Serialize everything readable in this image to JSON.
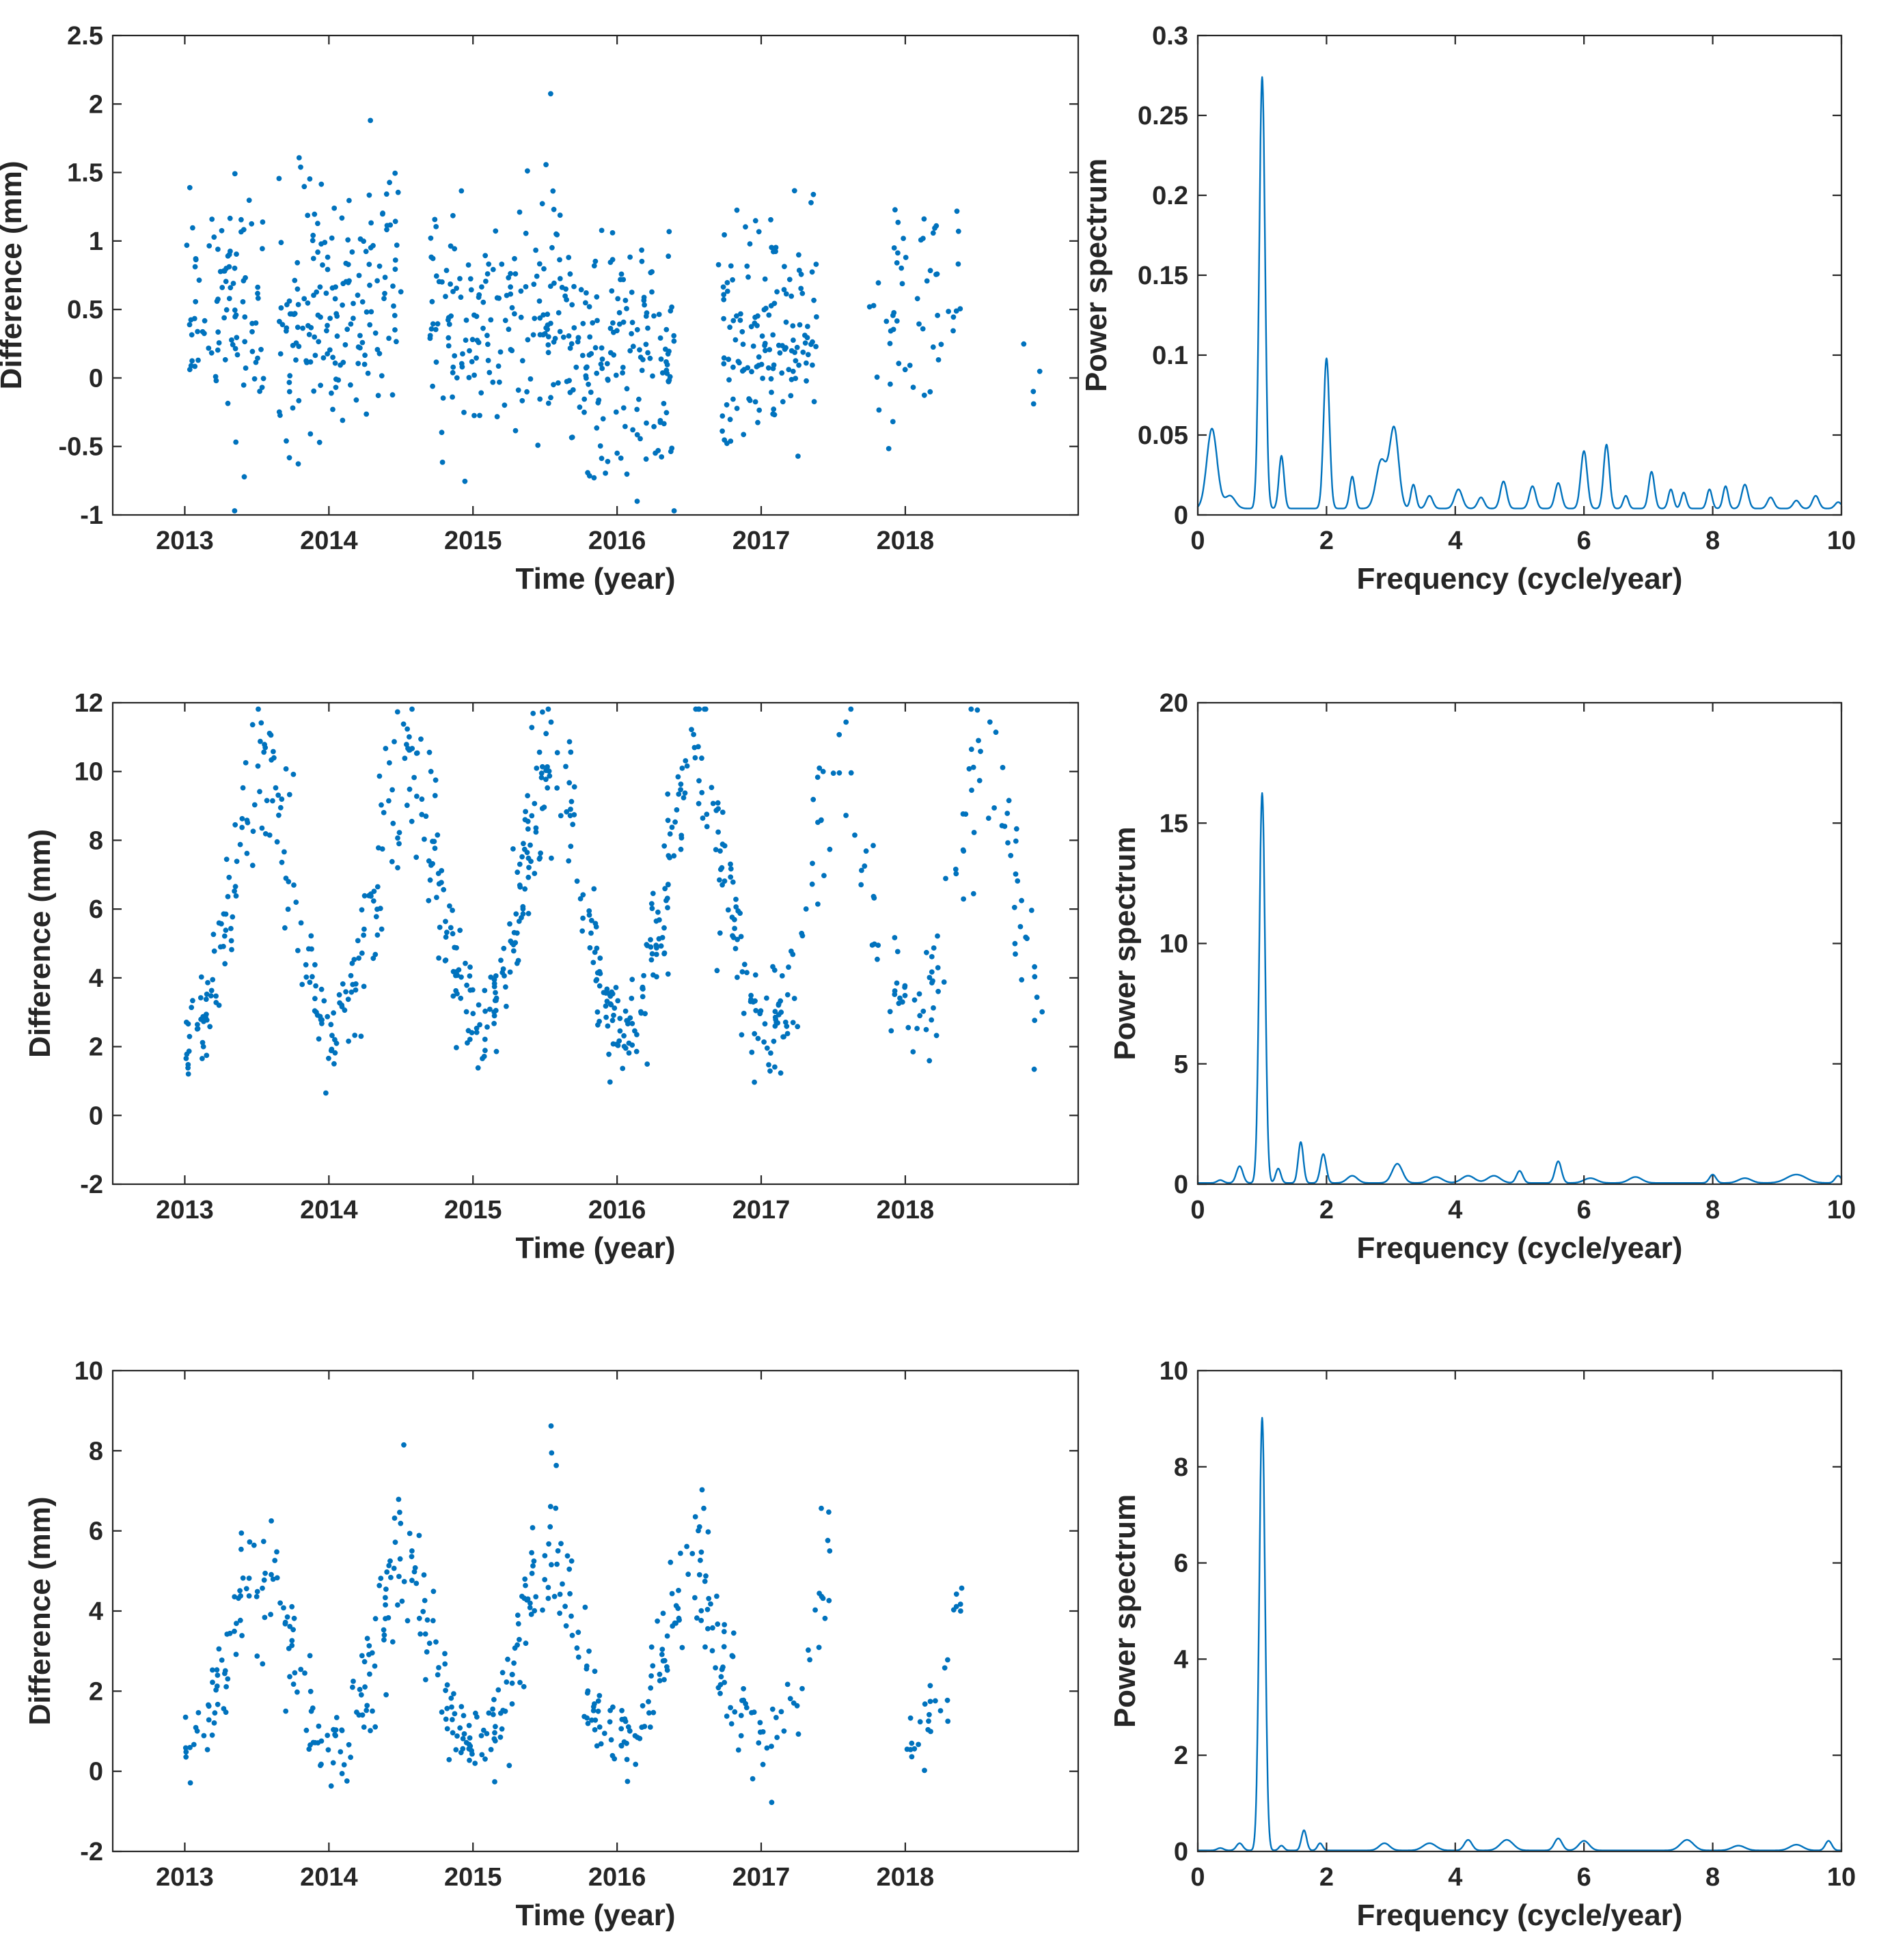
{
  "colors": {
    "series": "#0072BD",
    "axis": "#262626",
    "background": "#ffffff"
  },
  "chart_data": [
    {
      "id": "p1",
      "type": "scatter",
      "xlabel": "Time (year)",
      "ylabel": "Difference (mm)",
      "xlim": [
        2012.5,
        2019.2
      ],
      "ylim": [
        -1,
        2.5
      ],
      "xticks": [
        2013,
        2014,
        2015,
        2016,
        2017,
        2018
      ],
      "yticks": [
        -1,
        -0.5,
        0,
        0.5,
        1,
        1.5,
        2,
        2.5
      ],
      "ytick_labels": [
        "-1",
        "-0.5",
        "0",
        "0.5",
        "1",
        "1.5",
        "2",
        "2.5"
      ],
      "generator": {
        "seed": 11,
        "clusters": [
          {
            "start": 2013.0,
            "end": 2013.55,
            "n": 95,
            "mean": [
              0.45,
              0.55
            ],
            "sd": 0.42
          },
          {
            "start": 2013.65,
            "end": 2014.5,
            "n": 170,
            "mean": [
              0.35,
              0.65
            ],
            "sd": 0.45
          },
          {
            "start": 2014.7,
            "end": 2015.65,
            "n": 165,
            "mean": [
              0.3,
              0.55
            ],
            "sd": 0.45
          },
          {
            "start": 2015.65,
            "end": 2016.4,
            "n": 160,
            "mean": [
              0.25,
              0.05
            ],
            "sd": 0.45
          },
          {
            "start": 2016.7,
            "end": 2017.4,
            "n": 140,
            "mean": [
              0.25,
              0.45
            ],
            "sd": 0.42
          },
          {
            "start": 2017.75,
            "end": 2018.4,
            "n": 55,
            "mean": [
              0.3,
              0.6
            ],
            "sd": 0.45
          },
          {
            "start": 2018.6,
            "end": 2019.0,
            "n": 4,
            "mean": [
              0.3,
              0.1
            ],
            "sd": 0.3
          }
        ]
      }
    },
    {
      "id": "p2",
      "type": "line",
      "xlabel": "Frequency (cycle/year)",
      "ylabel": "Power spectrum",
      "xlim": [
        0,
        10
      ],
      "ylim": [
        0,
        0.3
      ],
      "xticks": [
        0,
        2,
        4,
        6,
        8,
        10
      ],
      "yticks": [
        0,
        0.05,
        0.1,
        0.15,
        0.2,
        0.25,
        0.3
      ],
      "ytick_labels": [
        "0",
        "0.05",
        "0.1",
        "0.15",
        "0.2",
        "0.25",
        "0.3"
      ],
      "baseline": 0.004,
      "peaks": [
        [
          0.22,
          0.05,
          0.08
        ],
        [
          0.5,
          0.008,
          0.08
        ],
        [
          1.0,
          0.27,
          0.045
        ],
        [
          1.3,
          0.033,
          0.04
        ],
        [
          2.0,
          0.094,
          0.045
        ],
        [
          2.4,
          0.02,
          0.04
        ],
        [
          2.85,
          0.03,
          0.08
        ],
        [
          3.05,
          0.05,
          0.07
        ],
        [
          3.35,
          0.015,
          0.04
        ],
        [
          3.6,
          0.008,
          0.05
        ],
        [
          4.05,
          0.012,
          0.06
        ],
        [
          4.4,
          0.007,
          0.05
        ],
        [
          4.75,
          0.017,
          0.05
        ],
        [
          5.2,
          0.014,
          0.05
        ],
        [
          5.6,
          0.016,
          0.05
        ],
        [
          6.0,
          0.036,
          0.05
        ],
        [
          6.35,
          0.04,
          0.045
        ],
        [
          6.65,
          0.008,
          0.04
        ],
        [
          7.05,
          0.023,
          0.045
        ],
        [
          7.35,
          0.012,
          0.04
        ],
        [
          7.55,
          0.01,
          0.04
        ],
        [
          7.95,
          0.012,
          0.04
        ],
        [
          8.2,
          0.014,
          0.04
        ],
        [
          8.5,
          0.015,
          0.05
        ],
        [
          8.9,
          0.007,
          0.05
        ],
        [
          9.3,
          0.005,
          0.05
        ],
        [
          9.6,
          0.008,
          0.05
        ],
        [
          9.95,
          0.004,
          0.05
        ]
      ]
    },
    {
      "id": "p3",
      "type": "scatter",
      "xlabel": "Time (year)",
      "ylabel": "Difference (mm)",
      "xlim": [
        2012.5,
        2019.2
      ],
      "ylim": [
        -2,
        12
      ],
      "xticks": [
        2013,
        2014,
        2015,
        2016,
        2017,
        2018
      ],
      "yticks": [
        -2,
        0,
        2,
        4,
        6,
        8,
        10,
        12
      ],
      "ytick_labels": [
        "-2",
        "0",
        "2",
        "4",
        "6",
        "8",
        "10",
        "12"
      ],
      "generator": {
        "seed": 23,
        "seasonal": {
          "base": 2.0,
          "amp": 8.0,
          "peak": 0.55,
          "width": 0.2,
          "sd": 1.2
        },
        "clusters": [
          {
            "start": 2013.0,
            "end": 2014.3,
            "n": 170
          },
          {
            "start": 2014.3,
            "end": 2015.3,
            "n": 150
          },
          {
            "start": 2015.3,
            "end": 2016.3,
            "n": 170
          },
          {
            "start": 2016.3,
            "end": 2017.4,
            "n": 150
          },
          {
            "start": 2017.4,
            "end": 2018.45,
            "n": 70
          },
          {
            "start": 2018.45,
            "end": 2018.95,
            "n": 40
          }
        ]
      }
    },
    {
      "id": "p4",
      "type": "line",
      "xlabel": "Frequency (cycle/year)",
      "ylabel": "Power spectrum",
      "xlim": [
        0,
        10
      ],
      "ylim": [
        0,
        20
      ],
      "xticks": [
        0,
        2,
        4,
        6,
        8,
        10
      ],
      "yticks": [
        0,
        5,
        10,
        15,
        20
      ],
      "ytick_labels": [
        "0",
        "5",
        "10",
        "15",
        "20"
      ],
      "baseline": 0.05,
      "peaks": [
        [
          0.35,
          0.12,
          0.05
        ],
        [
          0.65,
          0.7,
          0.05
        ],
        [
          1.0,
          16.2,
          0.045
        ],
        [
          1.25,
          0.6,
          0.04
        ],
        [
          1.6,
          1.7,
          0.04
        ],
        [
          1.95,
          1.2,
          0.045
        ],
        [
          2.4,
          0.3,
          0.08
        ],
        [
          3.1,
          0.8,
          0.08
        ],
        [
          3.7,
          0.25,
          0.1
        ],
        [
          4.2,
          0.3,
          0.1
        ],
        [
          4.6,
          0.3,
          0.1
        ],
        [
          5.0,
          0.5,
          0.05
        ],
        [
          5.6,
          0.9,
          0.05
        ],
        [
          6.1,
          0.2,
          0.1
        ],
        [
          6.8,
          0.25,
          0.1
        ],
        [
          8.0,
          0.35,
          0.05
        ],
        [
          8.5,
          0.2,
          0.1
        ],
        [
          9.3,
          0.35,
          0.15
        ],
        [
          9.95,
          0.3,
          0.05
        ]
      ]
    },
    {
      "id": "p5",
      "type": "scatter",
      "xlabel": "Time (year)",
      "ylabel": "Difference (mm)",
      "xlim": [
        2012.5,
        2019.2
      ],
      "ylim": [
        -2,
        10
      ],
      "xticks": [
        2013,
        2014,
        2015,
        2016,
        2017,
        2018
      ],
      "yticks": [
        -2,
        0,
        2,
        4,
        6,
        8,
        10
      ],
      "ytick_labels": [
        "-2",
        "0",
        "2",
        "4",
        "6",
        "8",
        "10"
      ],
      "generator": {
        "seed": 37,
        "seasonal": {
          "base": 0.5,
          "amp": 5.0,
          "peak": 0.52,
          "width": 0.18,
          "sd": 0.9
        },
        "clusters": [
          {
            "start": 2013.0,
            "end": 2013.75,
            "n": 80
          },
          {
            "start": 2013.75,
            "end": 2014.9,
            "n": 130
          },
          {
            "start": 2014.9,
            "end": 2015.85,
            "n": 120
          },
          {
            "start": 2015.85,
            "end": 2016.9,
            "n": 120
          },
          {
            "start": 2016.9,
            "end": 2017.55,
            "n": 35
          },
          {
            "start": 2018.0,
            "end": 2018.4,
            "n": 28
          }
        ]
      }
    },
    {
      "id": "p6",
      "type": "line",
      "xlabel": "Frequency (cycle/year)",
      "ylabel": "Power spectrum",
      "xlim": [
        0,
        10
      ],
      "ylim": [
        0,
        10
      ],
      "xticks": [
        0,
        2,
        4,
        6,
        8,
        10
      ],
      "yticks": [
        0,
        2,
        4,
        6,
        8,
        10
      ],
      "ytick_labels": [
        "0",
        "2",
        "4",
        "6",
        "8",
        "10"
      ],
      "baseline": 0.02,
      "peaks": [
        [
          0.35,
          0.05,
          0.05
        ],
        [
          0.65,
          0.15,
          0.05
        ],
        [
          1.0,
          9.0,
          0.045
        ],
        [
          1.3,
          0.1,
          0.04
        ],
        [
          1.65,
          0.42,
          0.04
        ],
        [
          1.9,
          0.15,
          0.04
        ],
        [
          2.9,
          0.15,
          0.08
        ],
        [
          3.6,
          0.15,
          0.1
        ],
        [
          4.2,
          0.22,
          0.06
        ],
        [
          4.8,
          0.22,
          0.1
        ],
        [
          5.6,
          0.25,
          0.06
        ],
        [
          6.0,
          0.2,
          0.08
        ],
        [
          7.6,
          0.22,
          0.1
        ],
        [
          8.4,
          0.1,
          0.1
        ],
        [
          9.3,
          0.12,
          0.1
        ],
        [
          9.8,
          0.2,
          0.05
        ]
      ]
    }
  ]
}
